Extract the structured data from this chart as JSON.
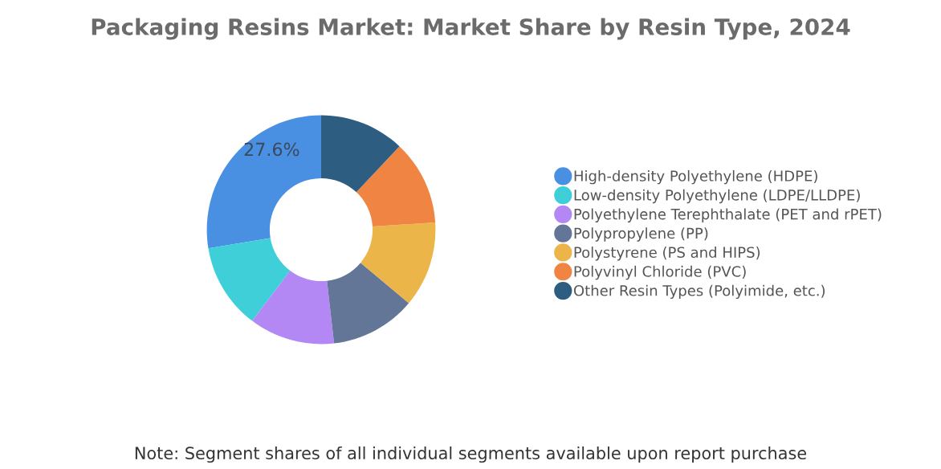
{
  "chart_data": {
    "type": "donut",
    "title": "Packaging Resins Market: Market Share by Resin Type, 2024",
    "categories": [
      "High-density Polyethylene (HDPE)",
      "Low-density Polyethylene (LDPE/LLDPE)",
      "Polyethylene Terephthalate (PET and rPET)",
      "Polypropylene (PP)",
      "Polystyrene (PS and HIPS)",
      "Polyvinyl Chloride (PVC)",
      "Other Resin Types (Polyimide, etc.)"
    ],
    "values": [
      27.6,
      12.1,
      12.1,
      12.1,
      12.1,
      12.0,
      12.0
    ],
    "colors": [
      "#4a90e2",
      "#3ecfd9",
      "#b388f5",
      "#637697",
      "#ebb54a",
      "#f08442",
      "#2e5d82"
    ],
    "value_labels": [
      "27.6%",
      null,
      null,
      null,
      null,
      null,
      null
    ],
    "legend": "right",
    "annotations": [
      "Note: Segment shares of all individual segments available upon report purchase"
    ]
  }
}
